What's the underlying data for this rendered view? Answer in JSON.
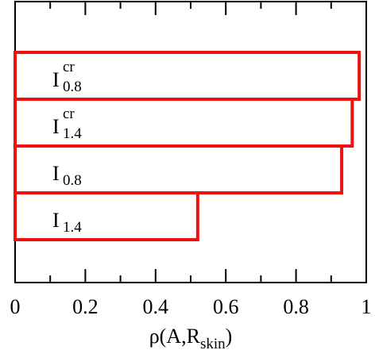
{
  "chart_data": {
    "type": "bar",
    "orientation": "horizontal",
    "categories": [
      {
        "base": "I",
        "sup": "cr",
        "sub": "0.8"
      },
      {
        "base": "I",
        "sup": "cr",
        "sub": "1.4"
      },
      {
        "base": "I",
        "sup": "",
        "sub": "0.8"
      },
      {
        "base": "I",
        "sup": "",
        "sub": "1.4"
      }
    ],
    "values": [
      0.98,
      0.96,
      0.93,
      0.52
    ],
    "bar_color": "#ee1111",
    "xlabel": {
      "base": "ρ(A,R",
      "sub": "skin",
      "tail": ")"
    },
    "xlim": [
      0,
      1.0
    ],
    "xticks": [
      "0",
      "0.2",
      "0.4",
      "0.6",
      "0.8",
      "1"
    ],
    "xtick_values": [
      0,
      0.2,
      0.4,
      0.6,
      0.8,
      1.0
    ],
    "grid": false,
    "legend": "none"
  }
}
